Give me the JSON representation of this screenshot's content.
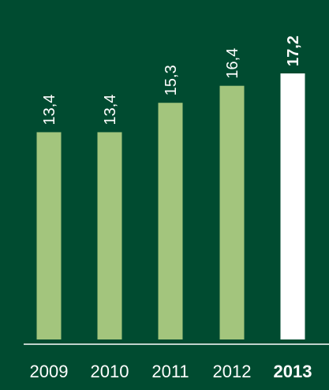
{
  "colors": {
    "background": "#004b30",
    "bar": "#a3c57d",
    "highlight_bar": "#ffffff",
    "text": "#ffffff",
    "baseline": "#ffffff"
  },
  "chart_data": {
    "type": "bar",
    "categories": [
      "2009",
      "2010",
      "2011",
      "2012",
      "2013"
    ],
    "value_labels": [
      "13,4",
      "13,4",
      "15,3",
      "16,4",
      "17,2"
    ],
    "values": [
      13.4,
      13.4,
      15.3,
      16.4,
      17.2
    ],
    "highlight_category": "2013",
    "title": "",
    "xlabel": "",
    "ylabel": "",
    "ylim": [
      0,
      17.2
    ],
    "grid": false,
    "legend": "none"
  }
}
